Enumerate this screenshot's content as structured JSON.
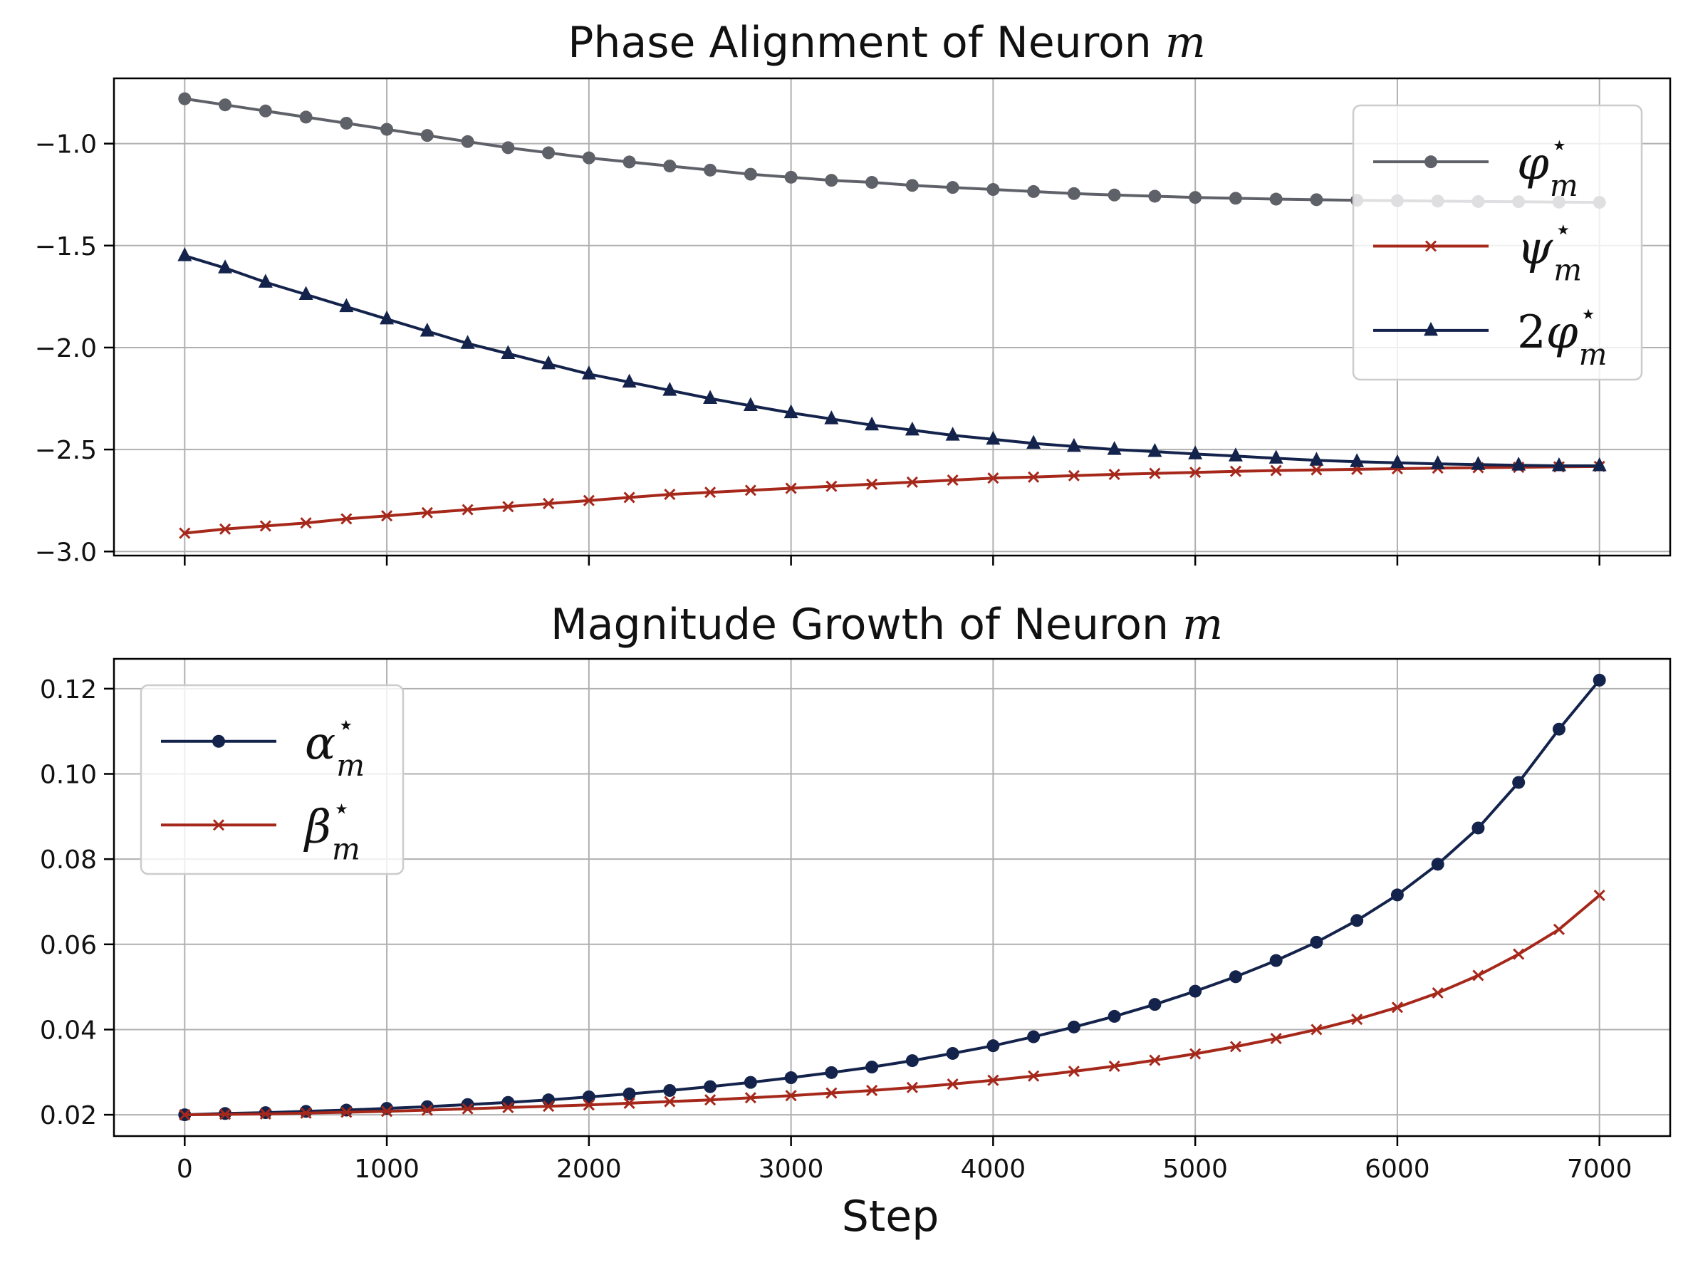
{
  "chart_data": [
    {
      "type": "line",
      "title": "Phase Alignment of Neuron m",
      "title_text": "Phase Alignment of Neuron",
      "title_var": "m",
      "xlabel": "",
      "ylabel": "",
      "ylim": [
        -3.02,
        -0.68
      ],
      "xlim": [
        -350,
        7350
      ],
      "yticks": [
        -3.0,
        -2.5,
        -2.0,
        -1.5,
        -1.0
      ],
      "ytick_labels": [
        "−3.0",
        "−2.5",
        "−2.0",
        "−1.5",
        "−1.0"
      ],
      "xticks": [
        0,
        1000,
        2000,
        3000,
        4000,
        5000,
        6000,
        7000
      ],
      "xtick_labels_shown": false,
      "grid": true,
      "legend_position": "top-right",
      "x": [
        0,
        200,
        400,
        600,
        800,
        1000,
        1200,
        1400,
        1600,
        1800,
        2000,
        2200,
        2400,
        2600,
        2800,
        3000,
        3200,
        3400,
        3600,
        3800,
        4000,
        4200,
        4400,
        4600,
        4800,
        5000,
        5200,
        5400,
        5600,
        5800,
        6000,
        6200,
        6400,
        6600,
        6800,
        7000
      ],
      "series": [
        {
          "name": "φ_m*",
          "legend_base": "φ",
          "legend_sub": "m",
          "legend_sup": "⋆",
          "legend_prefix": "",
          "color": "#5f6169",
          "marker": "circle",
          "values": [
            -0.78,
            -0.81,
            -0.84,
            -0.87,
            -0.9,
            -0.93,
            -0.96,
            -0.99,
            -1.02,
            -1.045,
            -1.07,
            -1.09,
            -1.11,
            -1.13,
            -1.15,
            -1.165,
            -1.18,
            -1.19,
            -1.205,
            -1.215,
            -1.225,
            -1.235,
            -1.245,
            -1.252,
            -1.258,
            -1.264,
            -1.268,
            -1.272,
            -1.275,
            -1.278,
            -1.28,
            -1.282,
            -1.284,
            -1.285,
            -1.287,
            -1.288
          ]
        },
        {
          "name": "ψ_m*",
          "legend_base": "ψ",
          "legend_sub": "m",
          "legend_sup": "⋆",
          "legend_prefix": "",
          "color": "#a5281b",
          "marker": "x",
          "values": [
            -2.91,
            -2.89,
            -2.875,
            -2.86,
            -2.84,
            -2.825,
            -2.81,
            -2.795,
            -2.78,
            -2.765,
            -2.75,
            -2.735,
            -2.72,
            -2.71,
            -2.7,
            -2.69,
            -2.68,
            -2.67,
            -2.66,
            -2.65,
            -2.64,
            -2.635,
            -2.628,
            -2.622,
            -2.617,
            -2.612,
            -2.607,
            -2.603,
            -2.6,
            -2.597,
            -2.594,
            -2.591,
            -2.589,
            -2.587,
            -2.585,
            -2.583
          ]
        },
        {
          "name": "2φ_m*",
          "legend_base": "φ",
          "legend_sub": "m",
          "legend_sup": "⋆",
          "legend_prefix": "2",
          "color": "#14234b",
          "marker": "triangle",
          "values": [
            -1.55,
            -1.61,
            -1.68,
            -1.74,
            -1.8,
            -1.86,
            -1.92,
            -1.98,
            -2.03,
            -2.08,
            -2.13,
            -2.17,
            -2.21,
            -2.25,
            -2.285,
            -2.32,
            -2.35,
            -2.38,
            -2.405,
            -2.43,
            -2.45,
            -2.47,
            -2.485,
            -2.5,
            -2.51,
            -2.522,
            -2.532,
            -2.543,
            -2.553,
            -2.56,
            -2.565,
            -2.57,
            -2.574,
            -2.577,
            -2.58,
            -2.58
          ]
        }
      ]
    },
    {
      "type": "line",
      "title": "Magnitude Growth of Neuron m",
      "title_text": "Magnitude Growth of Neuron",
      "title_var": "m",
      "xlabel": "Step",
      "ylabel": "",
      "ylim": [
        0.015,
        0.127
      ],
      "xlim": [
        -350,
        7350
      ],
      "yticks": [
        0.02,
        0.04,
        0.06,
        0.08,
        0.1,
        0.12
      ],
      "ytick_labels": [
        "0.02",
        "0.04",
        "0.06",
        "0.08",
        "0.10",
        "0.12"
      ],
      "xticks": [
        0,
        1000,
        2000,
        3000,
        4000,
        5000,
        6000,
        7000
      ],
      "xtick_labels": [
        "0",
        "1000",
        "2000",
        "3000",
        "4000",
        "5000",
        "6000",
        "7000"
      ],
      "grid": true,
      "legend_position": "top-left",
      "x": [
        0,
        200,
        400,
        600,
        800,
        1000,
        1200,
        1400,
        1600,
        1800,
        2000,
        2200,
        2400,
        2600,
        2800,
        3000,
        3200,
        3400,
        3600,
        3800,
        4000,
        4200,
        4400,
        4600,
        4800,
        5000,
        5200,
        5400,
        5600,
        5800,
        6000,
        6200,
        6400,
        6600,
        6800,
        7000
      ],
      "series": [
        {
          "name": "α_m*",
          "legend_base": "α",
          "legend_sub": "m",
          "legend_sup": "⋆",
          "legend_prefix": "",
          "color": "#14234b",
          "marker": "circle",
          "values": [
            0.02,
            0.0203,
            0.0205,
            0.0208,
            0.0211,
            0.0215,
            0.0219,
            0.0224,
            0.0229,
            0.0235,
            0.0242,
            0.0249,
            0.0257,
            0.0266,
            0.0276,
            0.0287,
            0.0299,
            0.0312,
            0.0327,
            0.0344,
            0.0362,
            0.0383,
            0.0406,
            0.0431,
            0.0459,
            0.049,
            0.0524,
            0.0562,
            0.0605,
            0.0656,
            0.0716,
            0.0788,
            0.0873,
            0.098,
            0.1105,
            0.122
          ]
        },
        {
          "name": "β_m*",
          "legend_base": "β",
          "legend_sub": "m",
          "legend_sup": "⋆",
          "legend_prefix": "",
          "color": "#a5281b",
          "marker": "x",
          "values": [
            0.02,
            0.0201,
            0.0202,
            0.0204,
            0.0206,
            0.0208,
            0.0211,
            0.0214,
            0.0217,
            0.022,
            0.0223,
            0.0227,
            0.0231,
            0.0235,
            0.024,
            0.0245,
            0.0251,
            0.0257,
            0.0264,
            0.0272,
            0.0281,
            0.0291,
            0.0302,
            0.0314,
            0.0328,
            0.0343,
            0.036,
            0.0379,
            0.04,
            0.0424,
            0.0452,
            0.0486,
            0.0527,
            0.0577,
            0.0635,
            0.0715
          ]
        }
      ]
    }
  ]
}
